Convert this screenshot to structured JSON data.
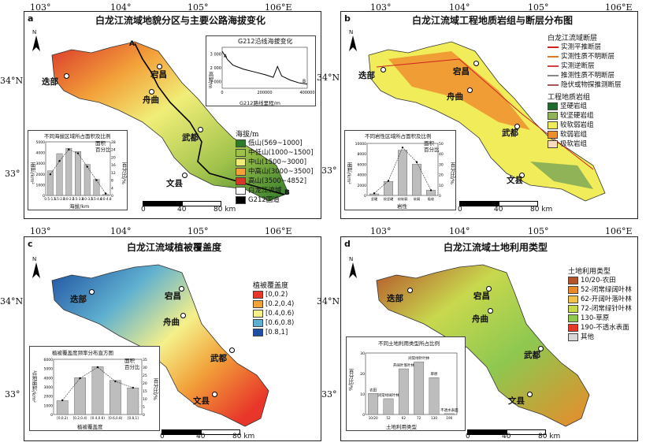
{
  "top_coords": [
    "103°",
    "104°",
    "105°",
    "106°E"
  ],
  "panels": {
    "a": {
      "letter": "a",
      "title": "白龙江流域地貌分区与主要公路海拔变化",
      "legend_title": "海拔/m",
      "legend": [
        {
          "label": "低山(569~1000]",
          "color": "#2f7a2a"
        },
        {
          "label": "中低山(1000~1500]",
          "color": "#9ec14a"
        },
        {
          "label": "中山(1500~3000]",
          "color": "#f0ee78"
        },
        {
          "label": "中高山(3000~3500]",
          "color": "#f3a23a"
        },
        {
          "label": "高山(3500~4852]",
          "color": "#d9362a"
        },
        {
          "label": "白龙江流域",
          "color": "#ffffff"
        },
        {
          "label": "G212国道",
          "color": "#000000"
        }
      ],
      "profile": {
        "title": "G212沿线海拔变化",
        "ylabel": "高程/m",
        "xlabel": "G212路线里程/m",
        "yticks": [
          "3 000",
          "2 000",
          "1 000"
        ],
        "xticks": [
          "0",
          "200000",
          "400000"
        ],
        "start": "A",
        "end": "B"
      },
      "bar_inset": {
        "title": "不同海拔区域所占面积及比例",
        "ylabel": "面积/km²",
        "y2label": "百分比/%",
        "xlabel": "海拔/km",
        "legend_area": "面积",
        "legend_pct": "百分比",
        "yticks": [
          "5000",
          "4000",
          "3000",
          "2000",
          "1000",
          "0"
        ],
        "y2ticks": [
          "28",
          "24",
          "20",
          "16",
          "12",
          "8",
          "4",
          "0"
        ],
        "categories": [
          "0.5-1.5",
          "1.5-2.0",
          "2.0-2.5",
          "2.5-3.0",
          "3.0-3.5",
          "3.5-4.0",
          "4.0-4.8"
        ]
      },
      "route_labels": [
        "A",
        "B"
      ],
      "scale": {
        "l0": "0",
        "l1": "40",
        "l2": "80 km"
      }
    },
    "b": {
      "letter": "b",
      "title": "白龙江流域工程地质岩组与断层分布图",
      "legend_title": "白龙江流域断层",
      "faults": [
        {
          "label": "实测平推断层",
          "color": "#cc2222"
        },
        {
          "label": "实测性质不明断层",
          "color": "#e07a2a"
        },
        {
          "label": "实测逆断层",
          "color": "#d04040"
        },
        {
          "label": "推测性质不明断层",
          "color": "#888888"
        },
        {
          "label": "隐伏或物探推测断层",
          "color": "#aa5555"
        }
      ],
      "rock_title": "工程地质岩组",
      "rocks": [
        {
          "label": "坚硬岩组",
          "color": "#1f6b2e"
        },
        {
          "label": "较坚硬岩组",
          "color": "#8fb356"
        },
        {
          "label": "较软弱岩组",
          "color": "#f1ec5a"
        },
        {
          "label": "软弱岩组",
          "color": "#ee8f2e"
        },
        {
          "label": "极软岩组",
          "color": "#f7dcc0"
        }
      ],
      "bar_inset": {
        "title": "不同岩性区域所占面积及比例",
        "ylabel": "面积/km²",
        "y2label": "百分比/%",
        "xlabel": "岩性",
        "legend_area": "面积",
        "legend_pct": "百分比",
        "yticks": [
          "10000",
          "8000",
          "6000",
          "4000",
          "2000",
          "0"
        ],
        "y2ticks": [
          "50",
          "40",
          "30",
          "20",
          "10",
          "0"
        ],
        "categories": [
          "坚硬",
          "较坚硬",
          "较软弱",
          "软弱",
          "极软"
        ]
      },
      "scale": {
        "l0": "0",
        "l1": "40",
        "l2": "80 km"
      }
    },
    "c": {
      "letter": "c",
      "title": "白龙江流域植被覆盖度",
      "legend_title": "植被覆盖度",
      "legend": [
        {
          "label": "[0,0.2)",
          "color": "#e8372a"
        },
        {
          "label": "[0.2,0.4)",
          "color": "#f2a23a"
        },
        {
          "label": "[0.4,0.6)",
          "color": "#f5f08a"
        },
        {
          "label": "[0.6,0.8)",
          "color": "#5fb0d0"
        },
        {
          "label": "[0.8,1]",
          "color": "#1e4fa0"
        }
      ],
      "bar_inset": {
        "title": "植被覆盖度频率分布直方图",
        "ylabel": "占地面积/km²",
        "y2label": "百分比/%",
        "xlabel": "植被覆盖度",
        "legend_area": "面积",
        "legend_pct": "百分比",
        "yticks": [
          "6000",
          "5000",
          "4000",
          "3000",
          "2000",
          "1000",
          "0"
        ],
        "y2ticks": [
          "35",
          "30",
          "25",
          "20",
          "15",
          "10",
          "5",
          "0"
        ],
        "categories": [
          "[0,0.2)",
          "[0.2,0.4)",
          "[0.4,0.6)",
          "[0.6,0.8)",
          "[0.8,1]"
        ]
      },
      "scale": {
        "l0": "0",
        "l1": "40",
        "l2": "80 km"
      }
    },
    "d": {
      "letter": "d",
      "title": "白龙江流域土地利用类型",
      "legend_title": "土地利用类型",
      "legend": [
        {
          "label": "10/20-农田",
          "color": "#b5542a"
        },
        {
          "label": "52-闭常绿阔叶林",
          "color": "#e98a2a"
        },
        {
          "label": "62-开阔叶落叶林",
          "color": "#f3c24a"
        },
        {
          "label": "72-闭常绿针叶林",
          "color": "#c8d84e"
        },
        {
          "label": "130-草原",
          "color": "#8ec850"
        },
        {
          "label": "190-不透水表面",
          "color": "#e03a2a"
        },
        {
          "label": "其他",
          "color": "#d8d8d8"
        }
      ],
      "bar_inset": {
        "title": "不同土地利用类型所占比例",
        "ylabel": "百分比/%",
        "xlabel": "土地利用类型",
        "yticks": [
          "30",
          "20",
          "10",
          "0"
        ],
        "categories": [
          "10/20",
          "52",
          "62",
          "72",
          "130",
          "190"
        ],
        "bar_labels": [
          "农田",
          "闭常绿阔叶林",
          "开阔叶落叶林",
          "闭常绿针叶林",
          "草原",
          "不透水表面"
        ]
      },
      "scale": {
        "l0": "0",
        "l1": "40",
        "l2": "80 km"
      }
    }
  },
  "cities": {
    "diebu": "迭部",
    "dangchang": "宕昌",
    "zhouqu": "舟曲",
    "wudu": "武都",
    "wenxian": "文县"
  },
  "lat_labels": [
    "34°N",
    "33°"
  ],
  "north": "N",
  "bottom_coords": [
    "103°",
    "104°",
    "105°",
    "106°E"
  ],
  "chart_data": [
    {
      "type": "line",
      "title": "G212沿线海拔变化",
      "xlabel": "G212路线里程/m",
      "ylabel": "高程/m",
      "x": [
        0,
        25000,
        50000,
        100000,
        150000,
        200000,
        240000,
        260000,
        280000,
        320000,
        360000,
        400000
      ],
      "y": [
        3200,
        2600,
        2200,
        1900,
        1700,
        1500,
        1300,
        2100,
        1400,
        1100,
        900,
        800
      ],
      "xlim": [
        0,
        400000
      ],
      "ylim": [
        500,
        3500
      ]
    },
    {
      "type": "bar",
      "title": "不同海拔区域所占面积及比例",
      "xlabel": "海拔/km",
      "ylabel": "面积/km²",
      "categories": [
        "0.5-1.5",
        "1.5-2.0",
        "2.0-2.5",
        "2.5-3.0",
        "3.0-3.5",
        "3.5-4.0",
        "4.0-4.8"
      ],
      "series": [
        {
          "name": "面积",
          "values": [
            2300,
            3900,
            4400,
            4100,
            2900,
            1500,
            100
          ]
        },
        {
          "name": "百分比",
          "values": [
            11,
            18,
            24,
            22,
            15,
            8,
            1
          ]
        }
      ],
      "ylim": [
        0,
        5000
      ]
    },
    {
      "type": "bar",
      "title": "不同岩性区域所占面积及比例",
      "xlabel": "岩性",
      "ylabel": "面积/km²",
      "categories": [
        "坚硬",
        "较坚硬",
        "较软弱",
        "软弱",
        "极软"
      ],
      "series": [
        {
          "name": "面积",
          "values": [
            300,
            2700,
            8700,
            6000,
            1000
          ]
        },
        {
          "name": "百分比",
          "values": [
            2,
            14,
            46,
            32,
            5
          ]
        }
      ],
      "ylim": [
        0,
        10000
      ]
    },
    {
      "type": "bar",
      "title": "植被覆盖度频率分布直方图",
      "xlabel": "植被覆盖度",
      "ylabel": "占地面积/km²",
      "categories": [
        "[0,0.2)",
        "[0.2,0.4)",
        "[0.4,0.6)",
        "[0.6,0.8)",
        "[0.8,1]"
      ],
      "series": [
        {
          "name": "面积",
          "values": [
            1500,
            4000,
            5200,
            3700,
            2900
          ]
        },
        {
          "name": "百分比",
          "values": [
            9,
            23,
            30,
            21,
            17
          ]
        }
      ],
      "ylim": [
        0,
        6000
      ]
    },
    {
      "type": "bar",
      "title": "不同土地利用类型所占比例",
      "xlabel": "土地利用类型",
      "ylabel": "百分比/%",
      "categories": [
        "10/20",
        "52",
        "62",
        "72",
        "130",
        "190"
      ],
      "values": [
        12,
        9,
        26,
        30,
        21,
        0.5
      ],
      "ylim": [
        0,
        35
      ]
    }
  ]
}
